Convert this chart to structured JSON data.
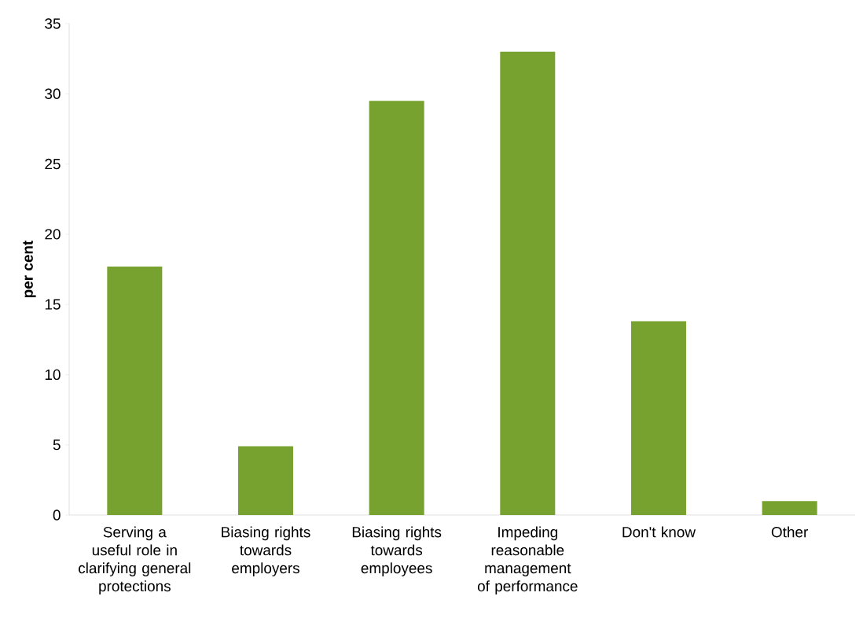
{
  "chart_data": {
    "type": "bar",
    "ylabel": "per cent",
    "categories": [
      "Serving a useful role in clarifying general protections",
      "Biasing rights towards employers",
      "Biasing rights towards employees",
      "Impeding reasonable management of performance",
      "Don't know",
      "Other"
    ],
    "values": [
      17.7,
      4.9,
      29.5,
      33.0,
      13.8,
      1.0
    ],
    "color": "#78a22f",
    "ylim": [
      0,
      35
    ],
    "yticks": [
      0,
      5,
      10,
      15,
      20,
      25,
      30,
      35
    ],
    "grid": false
  }
}
